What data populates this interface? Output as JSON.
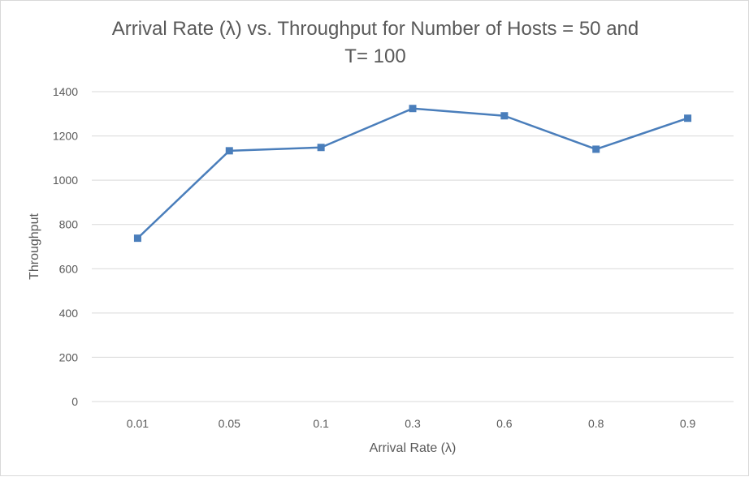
{
  "chart_data": {
    "type": "line",
    "title_lines": [
      "Arrival Rate (λ) vs. Throughput for Number of Hosts = 50 and",
      "T= 100"
    ],
    "xlabel": "Arrival Rate (λ)",
    "ylabel": "Throughput",
    "categories": [
      "0.01",
      "0.05",
      "0.1",
      "0.3",
      "0.6",
      "0.8",
      "0.9"
    ],
    "series": [
      {
        "values": [
          738,
          1133,
          1148,
          1324,
          1291,
          1140,
          1280
        ]
      }
    ],
    "ylim": [
      0,
      1400
    ],
    "yticks": [
      "0",
      "200",
      "400",
      "600",
      "800",
      "1000",
      "1200",
      "1400"
    ],
    "grid": true,
    "legend": "none",
    "line_color": "#4a7ebb",
    "grid_color": "#d9d9d9"
  }
}
